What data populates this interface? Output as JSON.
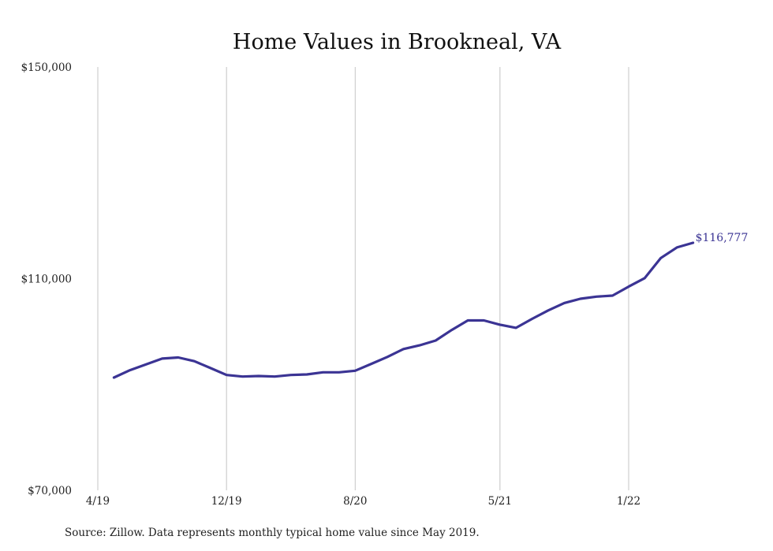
{
  "chart_data": {
    "type": "line",
    "title": "Home Values in Brookneal, VA",
    "xlabel": "",
    "ylabel": "",
    "ylim": [
      70000,
      150000
    ],
    "y_ticks": [
      70000,
      110000,
      150000
    ],
    "y_tick_labels": [
      "$70,000",
      "$110,000",
      "$150,000"
    ],
    "x_ticks": [
      "2019-04",
      "2019-12",
      "2020-08",
      "2021-05",
      "2022-01"
    ],
    "x_tick_labels": [
      "4/19",
      "12/19",
      "8/20",
      "5/21",
      "1/22"
    ],
    "grid": "vertical",
    "line_color": "#3b3494",
    "end_label": "$116,777",
    "x": [
      "2019-05",
      "2019-06",
      "2019-07",
      "2019-08",
      "2019-09",
      "2019-10",
      "2019-11",
      "2019-12",
      "2020-01",
      "2020-02",
      "2020-03",
      "2020-04",
      "2020-05",
      "2020-06",
      "2020-07",
      "2020-08",
      "2020-09",
      "2020-10",
      "2020-11",
      "2020-12",
      "2021-01",
      "2021-02",
      "2021-03",
      "2021-04",
      "2021-05",
      "2021-06",
      "2021-07",
      "2021-08",
      "2021-09",
      "2021-10",
      "2021-11",
      "2021-12",
      "2022-01",
      "2022-02",
      "2022-03",
      "2022-04",
      "2022-05"
    ],
    "series": [
      {
        "values": [
          91300,
          92700,
          93800,
          94900,
          95100,
          94400,
          93100,
          91800,
          91500,
          91600,
          91500,
          91800,
          91900,
          92300,
          92300,
          92600,
          93900,
          95200,
          96700,
          97400,
          98300,
          100300,
          102100,
          102100,
          101300,
          100700,
          102400,
          104000,
          105400,
          106200,
          106600,
          106800,
          108500,
          110100,
          113900,
          115900,
          116777
        ]
      }
    ]
  },
  "source": "Source: Zillow. Data represents monthly typical home value since May 2019."
}
